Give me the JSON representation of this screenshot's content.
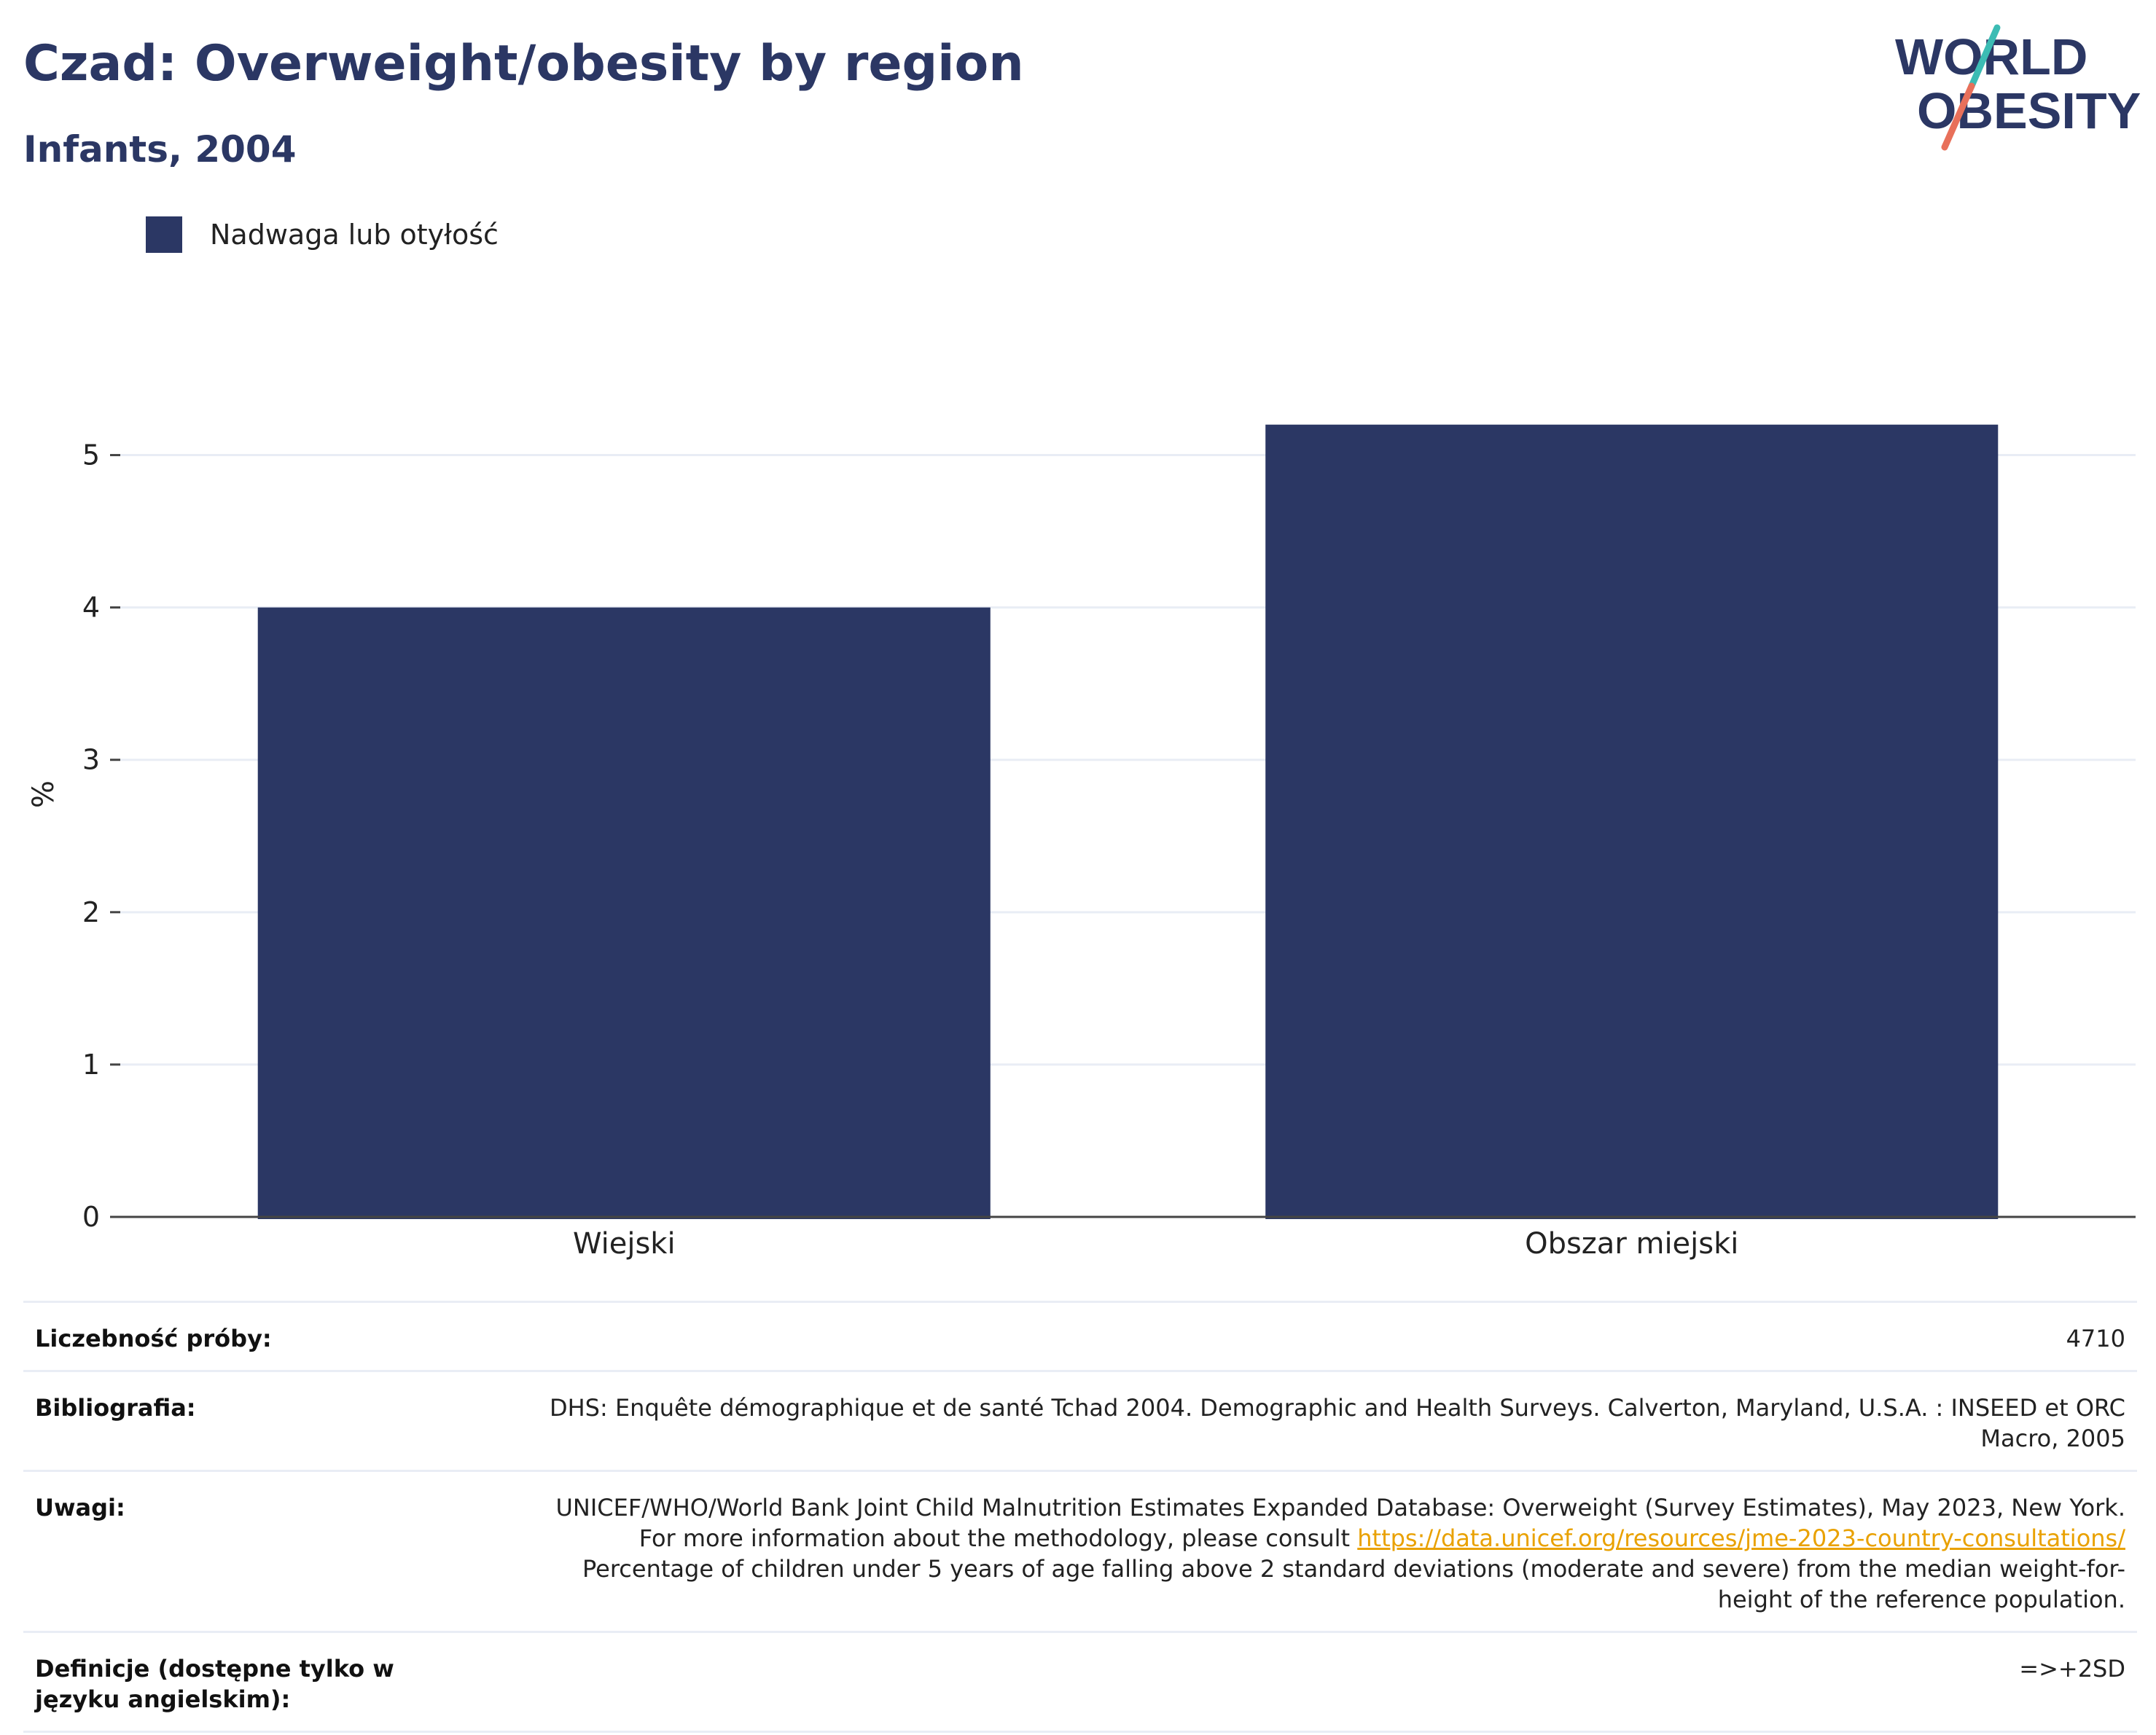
{
  "header": {
    "title": "Czad: Overweight/obesity by region",
    "subtitle": "Infants, 2004"
  },
  "logo": {
    "line1": "WORLD",
    "line2": "OBESITY",
    "colors": {
      "text": "#2b3764",
      "slash_top": "#3cbcb4",
      "slash_bottom": "#e8705a"
    }
  },
  "legend": {
    "label": "Nadwaga lub otyłość",
    "color": "#2b3764"
  },
  "chart_data": {
    "type": "bar",
    "categories": [
      "Wiejski",
      "Obszar miejski"
    ],
    "series": [
      {
        "name": "Nadwaga lub otyłość",
        "values": [
          4.0,
          5.2
        ],
        "color": "#2b3764"
      }
    ],
    "ylabel": "%",
    "xlabel": "",
    "ylim": [
      0,
      5.5
    ],
    "yticks": [
      0,
      1,
      2,
      3,
      4,
      5
    ],
    "grid": true
  },
  "info": {
    "sample_size": {
      "key": "Liczebność próby:",
      "value": "4710"
    },
    "bibliography": {
      "key": "Bibliografia:",
      "value": "DHS: Enquête démographique et de santé Tchad 2004. Demographic and Health Surveys. Calverton, Maryland, U.S.A. : INSEED et ORC Macro, 2005"
    },
    "notes": {
      "key": "Uwagi:",
      "text_before": "UNICEF/WHO/World Bank Joint Child Malnutrition Estimates Expanded Database: Overweight (Survey Estimates), May 2023, New York. For more information about the methodology, please consult ",
      "link": "https://data.unicef.org/resources/jme-2023-country-consultations/",
      "text_after": " Percentage of children under 5 years of age falling above 2 standard deviations (moderate and severe) from the median weight-for-height of the reference population."
    },
    "definitions": {
      "key": "Definicje (dostępne tylko w języku angielskim):",
      "value": "=>+2SD"
    }
  }
}
